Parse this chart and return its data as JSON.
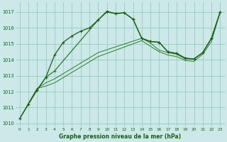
{
  "background_color": "#cce8e8",
  "grid_color": "#99ccbb",
  "line_color1": "#1a5c1a",
  "line_color2": "#2d7a2d",
  "xlabel": "Graphe pression niveau de la mer (hPa)",
  "xlim": [
    -0.5,
    23.5
  ],
  "ylim": [
    1009.8,
    1017.6
  ],
  "yticks": [
    1010,
    1011,
    1012,
    1013,
    1014,
    1015,
    1016,
    1017
  ],
  "xticks": [
    0,
    1,
    2,
    3,
    4,
    5,
    6,
    7,
    8,
    9,
    10,
    11,
    12,
    13,
    14,
    15,
    16,
    17,
    18,
    19,
    20,
    21,
    22,
    23
  ],
  "series1_x": [
    0,
    1,
    2,
    3,
    4,
    5,
    6,
    7,
    8,
    9,
    10,
    11,
    12,
    13,
    14,
    15,
    16,
    17,
    18,
    19,
    20,
    21,
    22,
    23
  ],
  "series1_y": [
    1010.3,
    1011.2,
    1012.1,
    1012.9,
    1014.3,
    1015.1,
    1015.5,
    1015.8,
    1016.0,
    1016.5,
    1017.05,
    1016.9,
    1016.95,
    1016.55,
    1015.35,
    1015.15,
    1015.1,
    1014.5,
    1014.4,
    1014.1,
    1014.05,
    1014.45,
    1015.35,
    1017.0
  ],
  "series2_x": [
    2,
    3,
    4,
    9,
    10,
    11,
    12,
    13,
    14,
    15,
    16,
    17,
    18,
    19,
    20,
    21,
    22,
    23
  ],
  "series2_y": [
    1012.1,
    1012.9,
    1013.3,
    1016.5,
    1017.0,
    1016.9,
    1016.95,
    1016.55,
    1015.35,
    1015.15,
    1015.1,
    1014.5,
    1014.4,
    1014.1,
    1014.05,
    1014.45,
    1015.35,
    1017.0
  ],
  "series3_x": [
    0,
    2,
    3,
    4,
    9,
    14,
    15,
    16,
    17,
    18,
    19,
    20,
    21,
    22,
    23
  ],
  "series3_y": [
    1010.3,
    1012.2,
    1012.55,
    1012.8,
    1014.45,
    1015.35,
    1015.05,
    1014.6,
    1014.45,
    1014.35,
    1014.05,
    1014.05,
    1014.45,
    1015.35,
    1017.0
  ],
  "series4_x": [
    0,
    2,
    3,
    4,
    9,
    14,
    15,
    16,
    17,
    18,
    19,
    20,
    21,
    22,
    23
  ],
  "series4_y": [
    1010.3,
    1012.2,
    1012.35,
    1012.55,
    1014.2,
    1015.2,
    1014.85,
    1014.5,
    1014.3,
    1014.2,
    1013.95,
    1013.9,
    1014.35,
    1015.15,
    1017.0
  ]
}
